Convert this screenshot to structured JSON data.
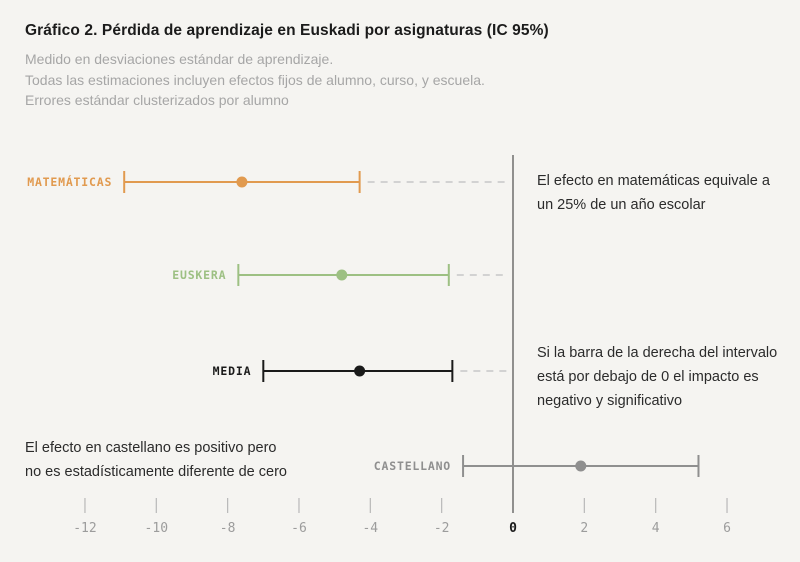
{
  "header": {
    "title": "Gráfico 2. Pérdida de aprendizaje en Euskadi por asignaturas (IC 95%)",
    "subtitle_lines": [
      "Medido en desviaciones estándar de aprendizaje.",
      "Todas las estimaciones incluyen efectos fijos de alumno, curso, y escuela.",
      "Errores estándar clusterizados por alumno"
    ]
  },
  "annotations": {
    "matematicas": "El efecto en matemáticas equivale a\nun 25% de un año escolar",
    "media": "Si la barra de la derecha del intervalo\nestá por debajo de 0 el impacto es\nnegativo y significativo",
    "castellano": "El efecto en castellano es positivo pero\nno es estadísticamente diferente de cero"
  },
  "chart_data": {
    "type": "scatter",
    "subtype": "horizontal-dot-plot-with-95ci-error-bars",
    "title": "Gráfico 2. Pérdida de aprendizaje en Euskadi por asignaturas (IC 95%)",
    "xlabel": "",
    "ylabel": "",
    "unit": "desviaciones estándar de aprendizaje (x100)",
    "series": [
      {
        "name": "MATEMÁTICAS",
        "estimate": -7.6,
        "ci_low": -10.9,
        "ci_high": -4.3,
        "color": "#E19A4F",
        "significant": true
      },
      {
        "name": "EUSKERA",
        "estimate": -4.8,
        "ci_low": -7.7,
        "ci_high": -1.8,
        "color": "#9DC083",
        "significant": true
      },
      {
        "name": "MEDIA",
        "estimate": -4.3,
        "ci_low": -7.0,
        "ci_high": -1.7,
        "color": "#1A1A1A",
        "significant": true
      },
      {
        "name": "CASTELLANO",
        "estimate": 1.9,
        "ci_low": -1.4,
        "ci_high": 5.2,
        "color": "#8F8F8F",
        "significant": false
      }
    ],
    "x_ticks": [
      -12,
      -10,
      -8,
      -6,
      -4,
      -2,
      0,
      2,
      4,
      6
    ],
    "xlim": [
      -13.8,
      8.1
    ],
    "reference_line_x": 0,
    "grid": false,
    "legend": false,
    "colors": {
      "background": "#f5f4f1",
      "axis_line": "#4d4d4d",
      "tick_mark": "#b8b8b8",
      "tick_label": "#9c9c9c",
      "tick_label_zero": "#1a1a1a",
      "dashed_connector": "#c7c7c7"
    }
  }
}
